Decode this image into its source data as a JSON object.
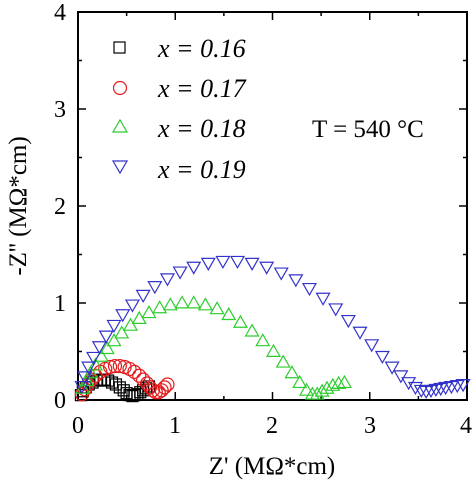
{
  "chart_data": {
    "type": "scatter",
    "xlabel": "Z' (MΩ*cm)",
    "ylabel": "-Z'' (MΩ*cm)",
    "xlim": [
      0,
      4
    ],
    "ylim": [
      0,
      4
    ],
    "xticks": [
      "0",
      "1",
      "2",
      "3",
      "4"
    ],
    "yticks": [
      "0",
      "1",
      "2",
      "3",
      "4"
    ],
    "grid": false,
    "legend_position": "top-left",
    "annotation": "T = 540 °C",
    "series": [
      {
        "name": "x = 0.16",
        "marker": "square",
        "color": "#000000",
        "points": [
          [
            0.03,
            0.05
          ],
          [
            0.05,
            0.09
          ],
          [
            0.08,
            0.13
          ],
          [
            0.11,
            0.16
          ],
          [
            0.15,
            0.18
          ],
          [
            0.19,
            0.2
          ],
          [
            0.23,
            0.21
          ],
          [
            0.27,
            0.21
          ],
          [
            0.31,
            0.2
          ],
          [
            0.35,
            0.18
          ],
          [
            0.39,
            0.16
          ],
          [
            0.43,
            0.13
          ],
          [
            0.47,
            0.1
          ],
          [
            0.5,
            0.07
          ],
          [
            0.53,
            0.05
          ],
          [
            0.56,
            0.04
          ],
          [
            0.58,
            0.05
          ],
          [
            0.61,
            0.06
          ],
          [
            0.64,
            0.08
          ],
          [
            0.67,
            0.1
          ],
          [
            0.7,
            0.12
          ],
          [
            0.73,
            0.14
          ]
        ]
      },
      {
        "name": "x = 0.17",
        "marker": "circle",
        "color": "#e41a1c",
        "points": [
          [
            0.04,
            0.06
          ],
          [
            0.07,
            0.11
          ],
          [
            0.1,
            0.16
          ],
          [
            0.14,
            0.21
          ],
          [
            0.18,
            0.25
          ],
          [
            0.23,
            0.29
          ],
          [
            0.28,
            0.32
          ],
          [
            0.33,
            0.34
          ],
          [
            0.38,
            0.35
          ],
          [
            0.43,
            0.35
          ],
          [
            0.48,
            0.34
          ],
          [
            0.53,
            0.32
          ],
          [
            0.58,
            0.29
          ],
          [
            0.63,
            0.25
          ],
          [
            0.67,
            0.21
          ],
          [
            0.71,
            0.17
          ],
          [
            0.74,
            0.13
          ],
          [
            0.77,
            0.1
          ],
          [
            0.8,
            0.08
          ],
          [
            0.83,
            0.08
          ],
          [
            0.86,
            0.1
          ],
          [
            0.89,
            0.13
          ],
          [
            0.92,
            0.16
          ]
        ]
      },
      {
        "name": "x = 0.18",
        "marker": "triangle-up",
        "color": "#2ecc2e",
        "points": [
          [
            0.05,
            0.12
          ],
          [
            0.09,
            0.2
          ],
          [
            0.13,
            0.28
          ],
          [
            0.18,
            0.36
          ],
          [
            0.24,
            0.45
          ],
          [
            0.3,
            0.53
          ],
          [
            0.37,
            0.61
          ],
          [
            0.45,
            0.69
          ],
          [
            0.54,
            0.77
          ],
          [
            0.63,
            0.84
          ],
          [
            0.73,
            0.9
          ],
          [
            0.84,
            0.95
          ],
          [
            0.95,
            0.98
          ],
          [
            1.07,
            1.0
          ],
          [
            1.19,
            1.0
          ],
          [
            1.31,
            0.98
          ],
          [
            1.43,
            0.94
          ],
          [
            1.55,
            0.88
          ],
          [
            1.67,
            0.8
          ],
          [
            1.79,
            0.71
          ],
          [
            1.9,
            0.61
          ],
          [
            2.01,
            0.5
          ],
          [
            2.11,
            0.39
          ],
          [
            2.2,
            0.28
          ],
          [
            2.28,
            0.18
          ],
          [
            2.35,
            0.1
          ],
          [
            2.41,
            0.06
          ],
          [
            2.46,
            0.06
          ],
          [
            2.51,
            0.09
          ],
          [
            2.56,
            0.12
          ],
          [
            2.62,
            0.15
          ],
          [
            2.68,
            0.17
          ],
          [
            2.74,
            0.18
          ]
        ]
      },
      {
        "name": "x = 0.19",
        "marker": "triangle-down",
        "color": "#3333cc",
        "points": [
          [
            0.04,
            0.14
          ],
          [
            0.07,
            0.24
          ],
          [
            0.11,
            0.34
          ],
          [
            0.16,
            0.44
          ],
          [
            0.22,
            0.55
          ],
          [
            0.29,
            0.66
          ],
          [
            0.37,
            0.77
          ],
          [
            0.46,
            0.88
          ],
          [
            0.56,
            0.98
          ],
          [
            0.67,
            1.08
          ],
          [
            0.79,
            1.17
          ],
          [
            0.92,
            1.25
          ],
          [
            1.05,
            1.32
          ],
          [
            1.19,
            1.37
          ],
          [
            1.34,
            1.41
          ],
          [
            1.49,
            1.43
          ],
          [
            1.64,
            1.43
          ],
          [
            1.79,
            1.41
          ],
          [
            1.94,
            1.37
          ],
          [
            2.09,
            1.31
          ],
          [
            2.24,
            1.24
          ],
          [
            2.38,
            1.15
          ],
          [
            2.52,
            1.05
          ],
          [
            2.65,
            0.94
          ],
          [
            2.78,
            0.82
          ],
          [
            2.9,
            0.7
          ],
          [
            3.02,
            0.57
          ],
          [
            3.13,
            0.45
          ],
          [
            3.23,
            0.34
          ],
          [
            3.32,
            0.25
          ],
          [
            3.4,
            0.18
          ],
          [
            3.47,
            0.13
          ],
          [
            3.53,
            0.1
          ],
          [
            3.58,
            0.09
          ],
          [
            3.63,
            0.1
          ],
          [
            3.68,
            0.11
          ],
          [
            3.73,
            0.12
          ],
          [
            3.78,
            0.13
          ],
          [
            3.84,
            0.14
          ],
          [
            3.9,
            0.15
          ],
          [
            3.96,
            0.16
          ]
        ]
      }
    ]
  }
}
